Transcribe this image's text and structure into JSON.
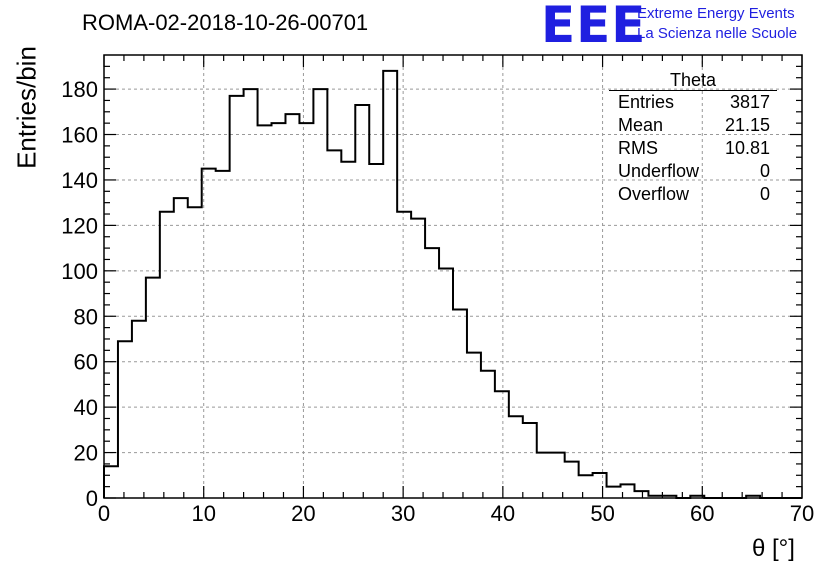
{
  "page": {
    "title": "ROMA-02-2018-10-26-00701",
    "logo_text": "EEE",
    "logo_line1": "Extreme Energy Events",
    "logo_line2": "La Scienza nelle Scuole",
    "logo_color": "#1f1fe0"
  },
  "stats_box": {
    "title": "Theta",
    "rows": [
      {
        "label": "Entries",
        "value": "3817"
      },
      {
        "label": "Mean",
        "value": "21.15"
      },
      {
        "label": "RMS",
        "value": "10.81"
      },
      {
        "label": "Underflow",
        "value": "0"
      },
      {
        "label": "Overflow",
        "value": "0"
      }
    ]
  },
  "chart_data": {
    "type": "bar",
    "style": "step-histogram",
    "xlabel": "θ [°]",
    "ylabel": "Entries/bin",
    "xlim": [
      0,
      70
    ],
    "ylim": [
      0,
      195
    ],
    "bin_width": 1.4,
    "grid": true,
    "legend": "top-right",
    "xticks": [
      0,
      10,
      20,
      30,
      40,
      50,
      60,
      70
    ],
    "yticks": [
      0,
      20,
      40,
      60,
      80,
      100,
      120,
      140,
      160,
      180
    ],
    "values": [
      14,
      69,
      78,
      97,
      126,
      132,
      128,
      145,
      144,
      177,
      180,
      164,
      165,
      169,
      165,
      180,
      153,
      148,
      173,
      147,
      188,
      126,
      123,
      110,
      101,
      83,
      64,
      56,
      47,
      36,
      33,
      20,
      20,
      16,
      10,
      11,
      5,
      6,
      3,
      1,
      1,
      0,
      1,
      0,
      0,
      0,
      1,
      0,
      0,
      0
    ]
  }
}
